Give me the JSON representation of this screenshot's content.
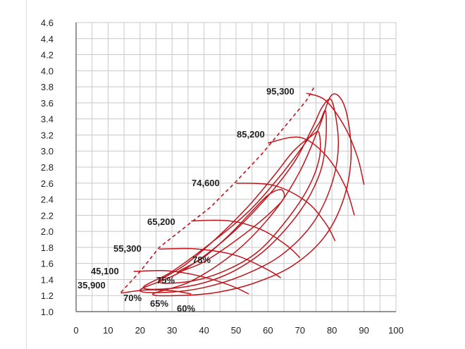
{
  "chart_data": {
    "type": "line",
    "title": "",
    "xlabel": "",
    "ylabel": "",
    "xlim": [
      0,
      100
    ],
    "ylim": [
      1.0,
      4.6
    ],
    "x_ticks": [
      "0",
      "10",
      "20",
      "30",
      "40",
      "50",
      "60",
      "70",
      "80",
      "90",
      "100"
    ],
    "y_ticks": [
      "1.0",
      "1.2",
      "1.4",
      "1.6",
      "1.8",
      "2.0",
      "2.2",
      "2.4",
      "2.6",
      "2.8",
      "3.0",
      "3.2",
      "3.4",
      "3.6",
      "3.8",
      "4.0",
      "4.2",
      "4.4",
      "4.6"
    ],
    "grid": true,
    "colors": {
      "curve": "#c0141c",
      "grid": "#c8c8c8",
      "axis": "#555555"
    },
    "surge_line": [
      [
        14,
        1.24
      ],
      [
        20,
        1.5
      ],
      [
        26,
        1.8
      ],
      [
        34,
        2.05
      ],
      [
        42,
        2.3
      ],
      [
        50,
        2.62
      ],
      [
        58,
        2.96
      ],
      [
        66,
        3.34
      ],
      [
        72,
        3.63
      ],
      [
        74.5,
        3.8
      ]
    ],
    "speed_lines": [
      {
        "label": "35,900",
        "points": [
          [
            14,
            1.23
          ],
          [
            22,
            1.27
          ],
          [
            30,
            1.26
          ],
          [
            36,
            1.22
          ]
        ]
      },
      {
        "label": "45,100",
        "points": [
          [
            18,
            1.5
          ],
          [
            28,
            1.51
          ],
          [
            38,
            1.45
          ],
          [
            48,
            1.33
          ],
          [
            54,
            1.22
          ]
        ]
      },
      {
        "label": "55,300",
        "points": [
          [
            26,
            1.78
          ],
          [
            38,
            1.78
          ],
          [
            50,
            1.7
          ],
          [
            60,
            1.52
          ],
          [
            64,
            1.42
          ]
        ]
      },
      {
        "label": "65,200",
        "points": [
          [
            36,
            2.13
          ],
          [
            48,
            2.13
          ],
          [
            58,
            2.02
          ],
          [
            66,
            1.82
          ],
          [
            70,
            1.67
          ]
        ]
      },
      {
        "label": "74,600",
        "points": [
          [
            50,
            2.6
          ],
          [
            62,
            2.57
          ],
          [
            72,
            2.37
          ],
          [
            78,
            2.1
          ],
          [
            81,
            1.88
          ]
        ]
      },
      {
        "label": "85,200",
        "points": [
          [
            60,
            3.1
          ],
          [
            70,
            3.17
          ],
          [
            78,
            2.95
          ],
          [
            84,
            2.57
          ],
          [
            87,
            2.2
          ]
        ]
      },
      {
        "label": "95,300",
        "points": [
          [
            72,
            3.72
          ],
          [
            78,
            3.63
          ],
          [
            84,
            3.3
          ],
          [
            88,
            2.92
          ],
          [
            90,
            2.58
          ]
        ]
      }
    ],
    "efficiency_islands": [
      {
        "label": "78%",
        "points": [
          [
            32,
            1.5
          ],
          [
            40,
            1.68
          ],
          [
            48,
            1.96
          ],
          [
            55,
            2.25
          ],
          [
            60,
            2.45
          ],
          [
            64,
            2.52
          ],
          [
            65,
            2.42
          ],
          [
            62,
            2.28
          ],
          [
            56,
            2.07
          ],
          [
            48,
            1.83
          ],
          [
            40,
            1.62
          ],
          [
            34,
            1.52
          ],
          [
            32,
            1.5
          ]
        ]
      },
      {
        "label": "75%",
        "points": [
          [
            26,
            1.37
          ],
          [
            34,
            1.58
          ],
          [
            44,
            1.92
          ],
          [
            54,
            2.32
          ],
          [
            62,
            2.7
          ],
          [
            68,
            3.0
          ],
          [
            74,
            3.2
          ],
          [
            76,
            3.22
          ],
          [
            76,
            2.9
          ],
          [
            72,
            2.5
          ],
          [
            64,
            2.05
          ],
          [
            56,
            1.72
          ],
          [
            46,
            1.5
          ],
          [
            36,
            1.38
          ],
          [
            26,
            1.37
          ]
        ]
      },
      {
        "label": "70%",
        "points": [
          [
            21,
            1.3
          ],
          [
            30,
            1.5
          ],
          [
            42,
            1.85
          ],
          [
            54,
            2.25
          ],
          [
            64,
            2.7
          ],
          [
            72,
            3.12
          ],
          [
            76,
            3.35
          ],
          [
            78,
            3.5
          ],
          [
            78,
            3.1
          ],
          [
            76,
            2.7
          ],
          [
            70,
            2.25
          ],
          [
            60,
            1.8
          ],
          [
            50,
            1.52
          ],
          [
            40,
            1.36
          ],
          [
            30,
            1.29
          ],
          [
            21,
            1.3
          ]
        ]
      },
      {
        "label": "65%",
        "points": [
          [
            20,
            1.27
          ],
          [
            32,
            1.48
          ],
          [
            46,
            1.88
          ],
          [
            58,
            2.35
          ],
          [
            68,
            2.85
          ],
          [
            74,
            3.3
          ],
          [
            77,
            3.55
          ],
          [
            80,
            3.62
          ],
          [
            82,
            3.1
          ],
          [
            80,
            2.6
          ],
          [
            74,
            2.1
          ],
          [
            64,
            1.7
          ],
          [
            52,
            1.45
          ],
          [
            40,
            1.3
          ],
          [
            28,
            1.24
          ],
          [
            20,
            1.27
          ]
        ]
      },
      {
        "label": "60%",
        "points": [
          [
            24,
            1.22
          ],
          [
            36,
            1.38
          ],
          [
            50,
            1.75
          ],
          [
            62,
            2.25
          ],
          [
            70,
            2.75
          ],
          [
            76,
            3.3
          ],
          [
            80,
            3.7
          ],
          [
            84,
            3.55
          ],
          [
            86,
            3.0
          ],
          [
            84,
            2.45
          ],
          [
            78,
            1.95
          ],
          [
            68,
            1.58
          ],
          [
            56,
            1.36
          ],
          [
            44,
            1.24
          ],
          [
            32,
            1.2
          ],
          [
            24,
            1.22
          ]
        ]
      }
    ]
  },
  "labels": {
    "speed_35900": "35,900",
    "speed_45100": "45,100",
    "speed_55300": "55,300",
    "speed_65200": "65,200",
    "speed_74600": "74,600",
    "speed_85200": "85,200",
    "speed_95300": "95,300",
    "eff_78": "78%",
    "eff_75": "75%",
    "eff_70": "70%",
    "eff_65": "65%",
    "eff_60": "60%"
  }
}
